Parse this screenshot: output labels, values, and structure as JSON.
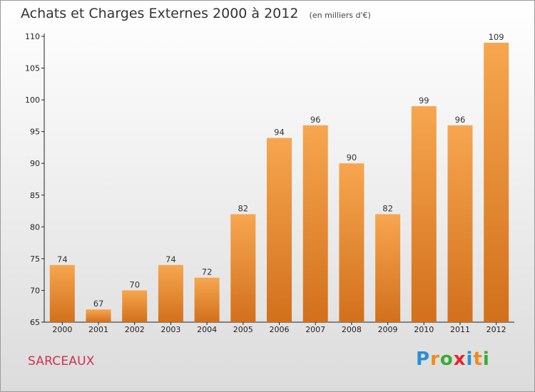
{
  "header": {
    "title": "Achats et Charges Externes 2000 à 2012",
    "unit": "(en milliers d'€)"
  },
  "footer": {
    "city": "SARCEAUX",
    "brand_letters": [
      "P",
      "r",
      "o",
      "x",
      "i",
      "t",
      "i"
    ],
    "brand_colors": [
      "#2a8fd6",
      "#f08a1c",
      "#3aaa35",
      "#e8262a",
      "#2a8fd6",
      "#f08a1c",
      "#3aaa35"
    ]
  },
  "chart_data": {
    "type": "bar",
    "title": "Achats et Charges Externes 2000 à 2012",
    "subtitle": "(en milliers d'€)",
    "categories": [
      "2000",
      "2001",
      "2002",
      "2003",
      "2004",
      "2005",
      "2006",
      "2007",
      "2008",
      "2009",
      "2010",
      "2011",
      "2012"
    ],
    "values": [
      74,
      67,
      70,
      74,
      72,
      82,
      94,
      96,
      90,
      82,
      99,
      96,
      109
    ],
    "data_labels": [
      "74",
      "67",
      "70",
      "74",
      "72",
      "82",
      "94",
      "96",
      "90",
      "82",
      "99",
      "96",
      "109"
    ],
    "xlabel": "",
    "ylabel": "",
    "ylim": [
      65,
      110
    ],
    "yticks": [
      65,
      70,
      75,
      80,
      85,
      90,
      95,
      100,
      105,
      110
    ],
    "grid": false,
    "bar_color_top": "#f7a64f",
    "bar_color_bottom": "#d2701c"
  }
}
